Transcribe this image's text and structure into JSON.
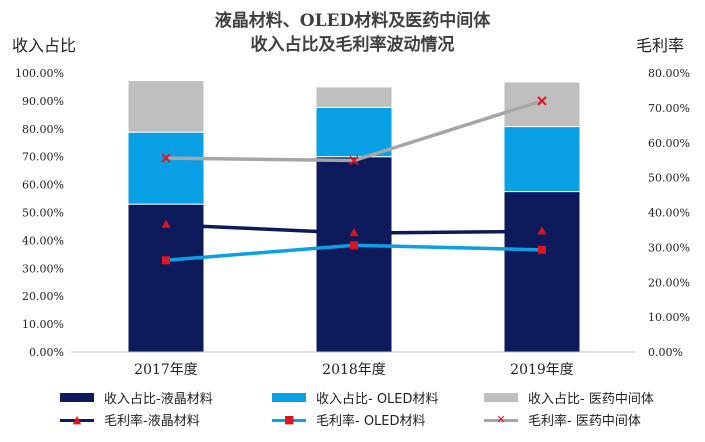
{
  "chart_data": {
    "type": "bar",
    "title_line1": "液晶材料、OLED材料及医药中间体",
    "title_line2": "收入占比及毛利率波动情况",
    "ylabel_left": "收入占比",
    "ylabel_right": "毛利率",
    "categories": [
      "2017年度",
      "2018年度",
      "2019年度"
    ],
    "left_ticks": [
      "0.00%",
      "10.00%",
      "20.00%",
      "30.00%",
      "40.00%",
      "50.00%",
      "60.00%",
      "70.00%",
      "80.00%",
      "90.00%",
      "100.00%"
    ],
    "right_ticks": [
      "0.00%",
      "10.00%",
      "20.00%",
      "30.00%",
      "40.00%",
      "50.00%",
      "60.00%",
      "70.00%",
      "80.00%"
    ],
    "ylim_left": [
      0,
      100
    ],
    "ylim_right": [
      0,
      80
    ],
    "bar_series": [
      {
        "name": "收入占比-液晶材料",
        "color": "#0d1a5c",
        "values": [
          53.0,
          70.0,
          57.5
        ]
      },
      {
        "name": "收入占比- OLED材料",
        "color": "#0aa0e6",
        "values": [
          25.8,
          17.7,
          23.3
        ]
      },
      {
        "name": "收入占比- 医药中间体",
        "color": "#bfbfbf",
        "values": [
          18.5,
          7.3,
          16.0
        ]
      }
    ],
    "line_series": [
      {
        "name": "毛利率-液晶材料",
        "color": "#0d1a5c",
        "marker": "triangle",
        "marker_color": "#e0141e",
        "values": [
          36.5,
          34.1,
          34.6
        ]
      },
      {
        "name": "毛利率- OLED材料",
        "color": "#0aa0e6",
        "marker": "square",
        "marker_color": "#e0141e",
        "values": [
          26.3,
          30.6,
          29.3
        ]
      },
      {
        "name": "毛利率- 医药中间体",
        "color": "#a6a6a6",
        "marker": "x",
        "marker_color": "#e0141e",
        "values": [
          55.6,
          54.9,
          72.0
        ]
      }
    ],
    "grid": false,
    "legend_position": "bottom"
  }
}
